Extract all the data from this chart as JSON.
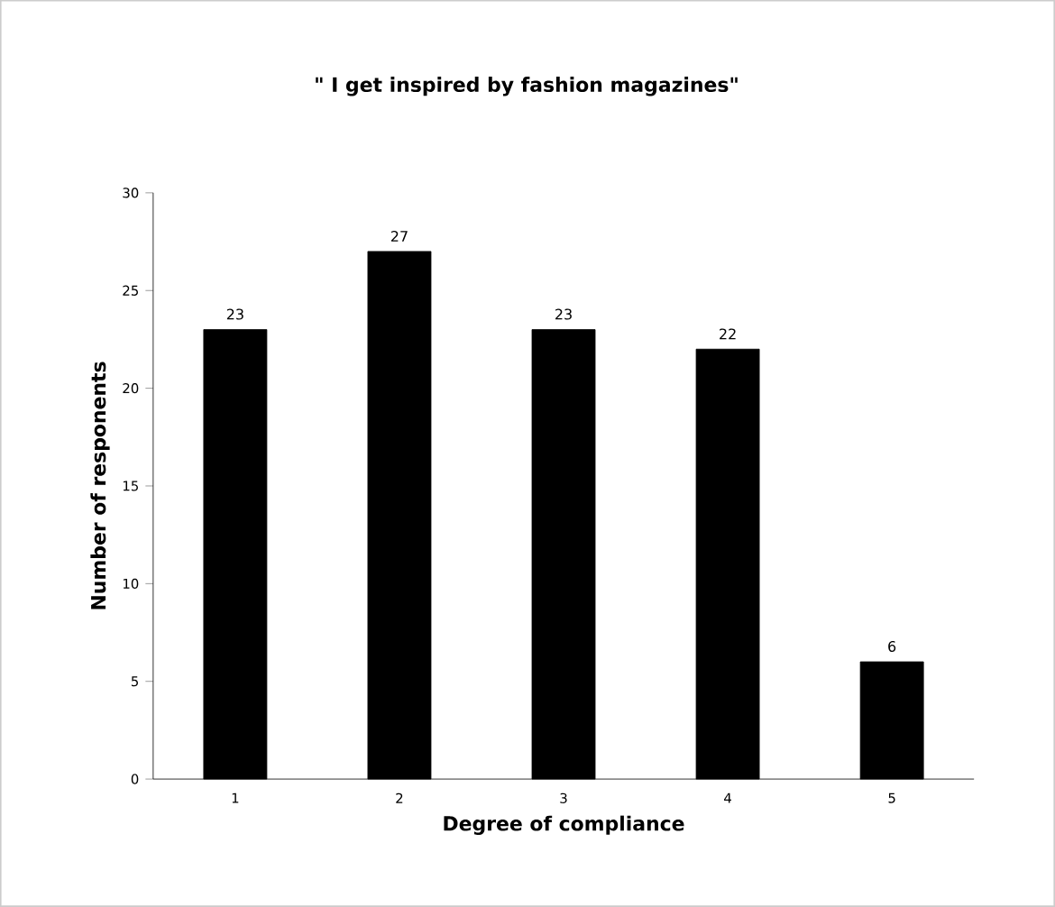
{
  "chart_data": {
    "type": "bar",
    "title": "\" I get inspired by fashion magazines\"",
    "xlabel": "Degree of compliance",
    "ylabel": "Number of responents",
    "categories": [
      "1",
      "2",
      "3",
      "4",
      "5"
    ],
    "values": [
      23,
      27,
      23,
      22,
      6
    ],
    "color": "#000000",
    "ylim": [
      0,
      30
    ],
    "yticks": [
      0,
      5,
      10,
      15,
      20,
      25,
      30
    ],
    "data_labels": true
  }
}
